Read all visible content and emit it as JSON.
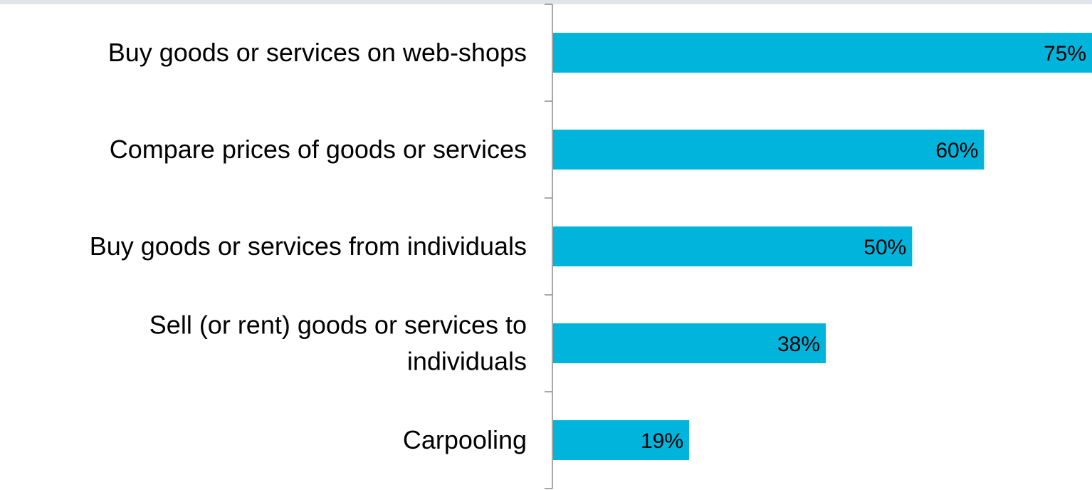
{
  "chart_data": {
    "type": "bar",
    "orientation": "horizontal",
    "categories": [
      [
        "Buy goods or services on web-shops"
      ],
      [
        "Compare prices of goods or services"
      ],
      [
        "Buy goods or services from individuals"
      ],
      [
        "Sell (or rent) goods or services to",
        "individuals"
      ],
      [
        "Carpooling"
      ]
    ],
    "values": [
      75,
      60,
      50,
      38,
      19
    ],
    "value_labels": [
      "75%",
      "60%",
      "50%",
      "38%",
      "19%"
    ],
    "xlim": [
      0,
      75
    ],
    "grid": false,
    "legend": "none",
    "bar_color": "#00b4dc",
    "axis_color": "#8c8c8c"
  }
}
